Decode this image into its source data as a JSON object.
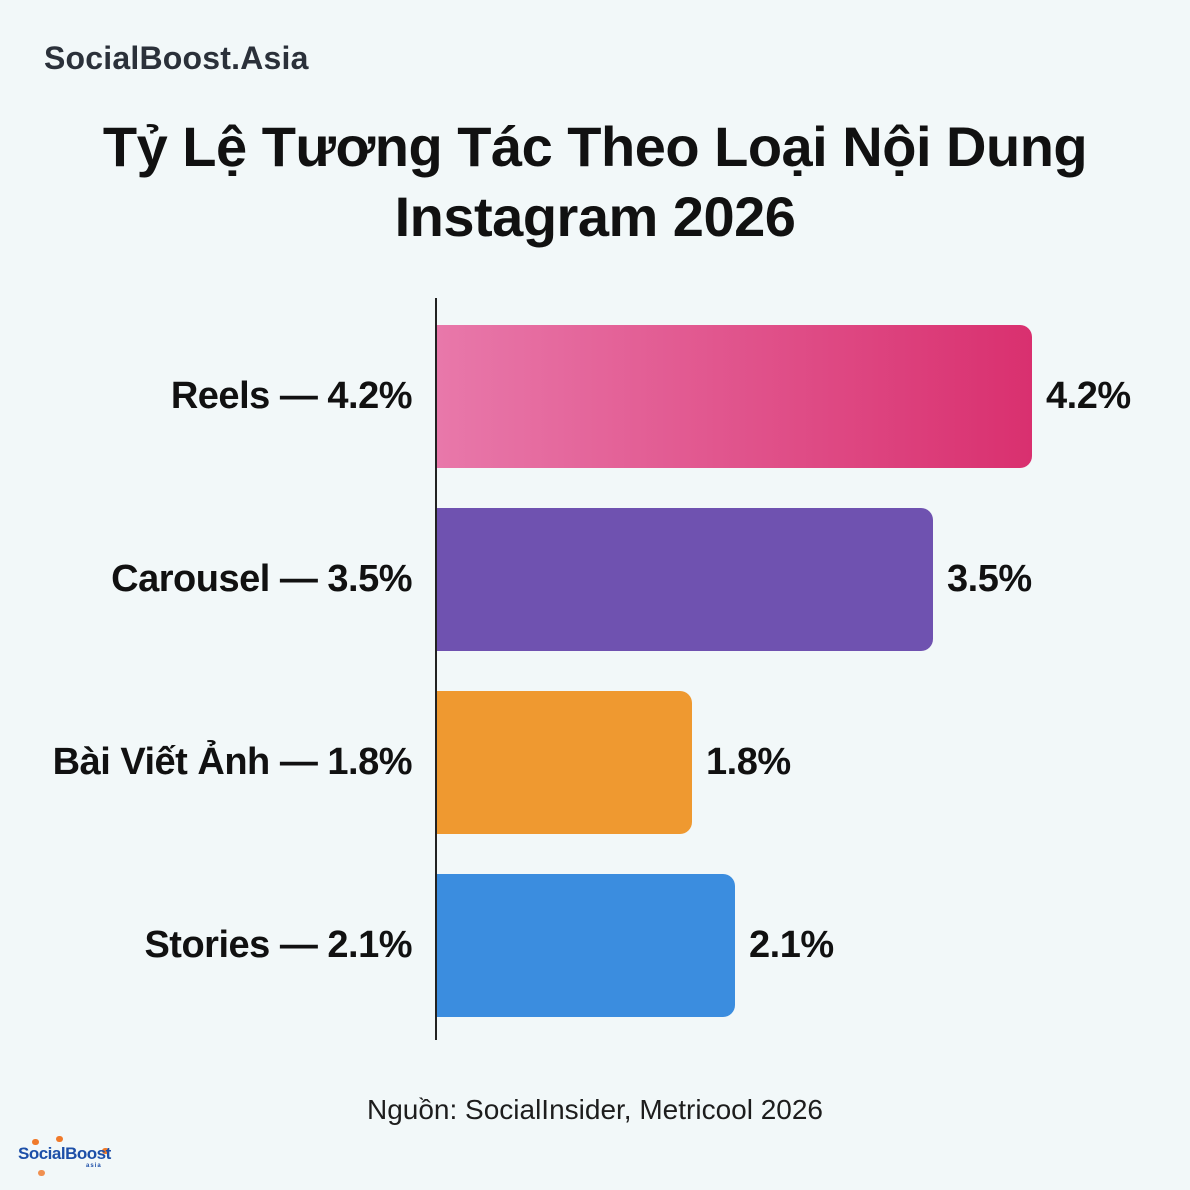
{
  "header": {
    "brand": "SocialBoost.Asia",
    "title_line1": "Tỷ Lệ Tương Tác Theo Loại Nội Dung",
    "title_line2": "Instagram 2026"
  },
  "bars": [
    {
      "category": "Reels — 4.2%",
      "value_label": "4.2%",
      "value": 4.2,
      "color_start": "#e878aa",
      "color_end": "#d9306f"
    },
    {
      "category": "Carousel — 3.5%",
      "value_label": "3.5%",
      "value": 3.5,
      "color_start": "#6f52b0",
      "color_end": "#6f52b0"
    },
    {
      "category": "Bài Viết Ảnh — 1.8%",
      "value_label": "1.8%",
      "value": 1.8,
      "color_start": "#ef9930",
      "color_end": "#ef9930"
    },
    {
      "category": "Stories — 2.1%",
      "value_label": "2.1%",
      "value": 2.1,
      "color_start": "#3b8ddf",
      "color_end": "#3b8ddf"
    }
  ],
  "footer": {
    "source": "Nguồn: SocialInsider, Metricool 2026",
    "logo_text": "SocialBoost",
    "logo_sub": "asia"
  },
  "chart_data": {
    "type": "bar",
    "orientation": "horizontal",
    "title": "Tỷ Lệ Tương Tác Theo Loại Nội Dung Instagram 2026",
    "categories": [
      "Reels",
      "Carousel",
      "Bài Viết Ảnh",
      "Stories"
    ],
    "values": [
      4.2,
      3.5,
      1.8,
      2.1
    ],
    "unit": "%",
    "xlabel": "",
    "ylabel": "",
    "grid": false,
    "legend": false,
    "data_labels": [
      "4.2%",
      "3.5%",
      "1.8%",
      "2.1%"
    ],
    "colors": [
      "#d9306f",
      "#6f52b0",
      "#ef9930",
      "#3b8ddf"
    ],
    "annotation": "Nguồn: SocialInsider, Metricool 2026"
  }
}
